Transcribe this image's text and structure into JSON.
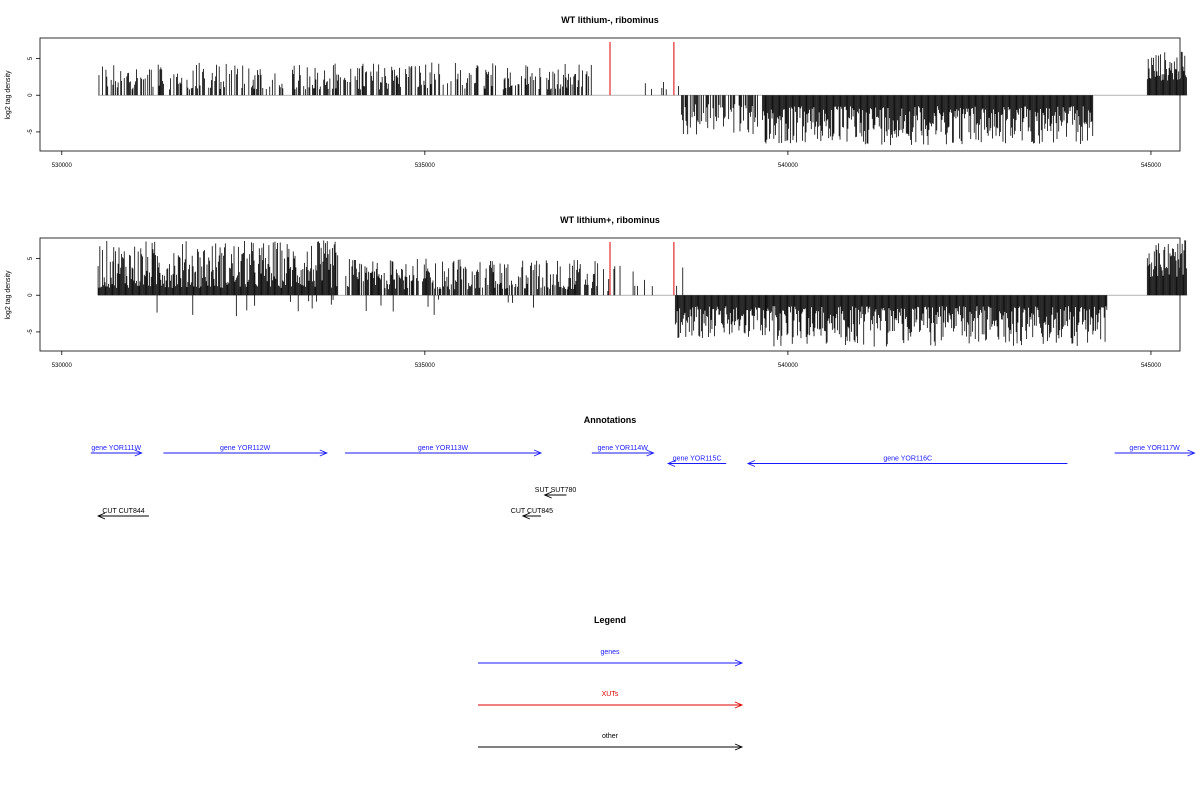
{
  "chart_data": [
    {
      "type": "bar",
      "title": "WT lithium-, ribominus",
      "ylabel": "log2 tag density",
      "xlim": [
        529700,
        545400
      ],
      "ylim": [
        -7.6,
        7.8
      ],
      "x_ticks": [
        530000,
        535000,
        540000,
        545000
      ],
      "x_tick_labels": [
        "530000",
        "535000",
        "540000",
        "545000"
      ],
      "y_ticks": [
        -5,
        0,
        5
      ],
      "y_tick_labels": [
        "-5",
        "0",
        "5"
      ],
      "highlight_positions": [
        537550,
        538430
      ],
      "highlight_color": "#dd0000",
      "bar_color": "#000000",
      "segments": [
        {
          "start": 530500,
          "end": 537300,
          "sign": 1,
          "min": 0.8,
          "max": 4.5,
          "density": 0.5
        },
        {
          "start": 538000,
          "end": 538600,
          "sign": 1,
          "min": 0.8,
          "max": 2.0,
          "density": 0.08
        },
        {
          "start": 538500,
          "end": 539600,
          "sign": -1,
          "min": 1.2,
          "max": 5.5,
          "density": 0.6
        },
        {
          "start": 539650,
          "end": 544200,
          "sign": -1,
          "min": 1.5,
          "max": 6.8,
          "density": 1.0
        },
        {
          "start": 544950,
          "end": 545500,
          "sign": 1,
          "min": 2.0,
          "max": 6.0,
          "density": 1.0
        }
      ]
    },
    {
      "type": "bar",
      "title": "WT lithium+, ribominus",
      "ylabel": "log2 tag density",
      "xlim": [
        529700,
        545400
      ],
      "ylim": [
        -7.6,
        7.8
      ],
      "x_ticks": [
        530000,
        535000,
        540000,
        545000
      ],
      "x_tick_labels": [
        "530000",
        "535000",
        "540000",
        "545000"
      ],
      "y_ticks": [
        -5,
        0,
        5
      ],
      "y_tick_labels": [
        "-5",
        "0",
        "5"
      ],
      "highlight_positions": [
        537550,
        538430
      ],
      "highlight_color": "#dd0000",
      "bar_color": "#000000",
      "segments": [
        {
          "start": 530500,
          "end": 533800,
          "sign": 1,
          "min": 1.0,
          "max": 7.5,
          "density": 1.0
        },
        {
          "start": 530700,
          "end": 533800,
          "sign": -1,
          "min": 0.5,
          "max": 3.0,
          "density": 0.05
        },
        {
          "start": 533900,
          "end": 537400,
          "sign": 1,
          "min": 0.8,
          "max": 5.0,
          "density": 0.7
        },
        {
          "start": 534000,
          "end": 537300,
          "sign": -1,
          "min": 0.5,
          "max": 3.5,
          "density": 0.05
        },
        {
          "start": 537400,
          "end": 538600,
          "sign": 1,
          "min": 0.5,
          "max": 4.5,
          "density": 0.15
        },
        {
          "start": 538450,
          "end": 539700,
          "sign": -1,
          "min": 1.5,
          "max": 6.0,
          "density": 1.0
        },
        {
          "start": 539700,
          "end": 544400,
          "sign": -1,
          "min": 1.5,
          "max": 7.0,
          "density": 1.0
        },
        {
          "start": 544950,
          "end": 545500,
          "sign": 1,
          "min": 2.5,
          "max": 7.5,
          "density": 1.0
        }
      ]
    }
  ],
  "annotations": {
    "title": "Annotations",
    "xlim": [
      529700,
      545400
    ],
    "features": [
      {
        "label": "gene YOR111W",
        "start": 530400,
        "end": 531100,
        "strand": "+",
        "track": 0,
        "color": "#1a1aff"
      },
      {
        "label": "gene YOR112W",
        "start": 531400,
        "end": 533650,
        "strand": "+",
        "track": 0,
        "color": "#1a1aff"
      },
      {
        "label": "gene YOR113W",
        "start": 533900,
        "end": 536600,
        "strand": "+",
        "track": 0,
        "color": "#1a1aff"
      },
      {
        "label": "gene YOR114W",
        "start": 537300,
        "end": 538150,
        "strand": "+",
        "track": 0,
        "color": "#1a1aff"
      },
      {
        "label": "gene YOR115C",
        "start": 538350,
        "end": 539150,
        "strand": "-",
        "track": 1,
        "color": "#1a1aff"
      },
      {
        "label": "gene YOR116C",
        "start": 539450,
        "end": 543850,
        "strand": "-",
        "track": 1,
        "color": "#1a1aff"
      },
      {
        "label": "gene YOR117W",
        "start": 544500,
        "end": 545600,
        "strand": "+",
        "track": 0,
        "color": "#1a1aff"
      },
      {
        "label": "SUT SUT780",
        "start": 536650,
        "end": 536950,
        "strand": "-",
        "track": 4,
        "color": "#000000"
      },
      {
        "label": "CUT CUT844",
        "start": 530500,
        "end": 531200,
        "strand": "-",
        "track": 6,
        "color": "#000000"
      },
      {
        "label": "CUT CUT845",
        "start": 536350,
        "end": 536600,
        "strand": "-",
        "track": 6,
        "color": "#000000"
      }
    ]
  },
  "legend": {
    "title": "Legend",
    "items": [
      {
        "label": "genes",
        "color": "#1a1aff"
      },
      {
        "label": "XUTs",
        "color": "#dd0000"
      },
      {
        "label": "other",
        "color": "#000000"
      }
    ]
  }
}
